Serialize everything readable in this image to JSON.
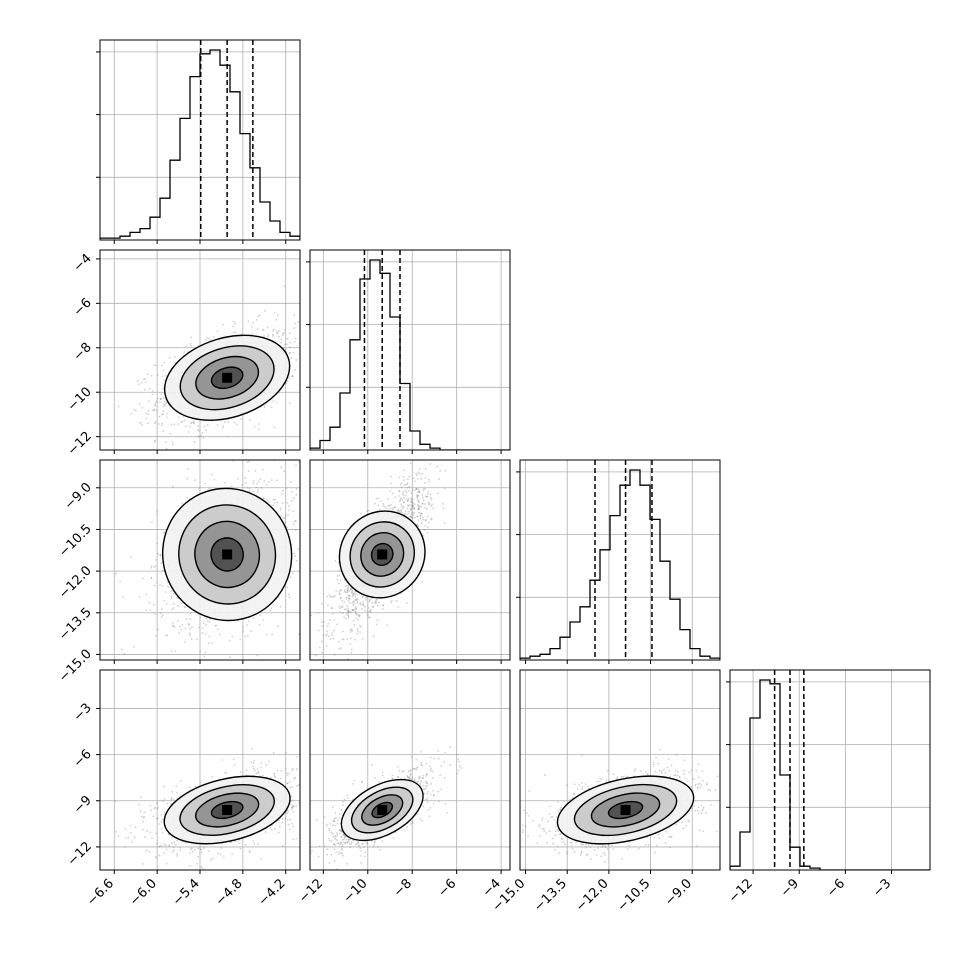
{
  "chart_data": {
    "type": "corner",
    "dimensions": 4,
    "axis_labels": [
      "",
      "",
      "",
      ""
    ],
    "grid": true,
    "colors": {
      "contour": "#000000",
      "density": "#000000",
      "points": "#7f7f7f",
      "grid": "#b0b0b0"
    },
    "quantile_style": "dashed",
    "params": [
      {
        "range": [
          -6.8,
          -4.0
        ],
        "ticks": [
          -6.6,
          -6.0,
          -5.4,
          -4.8,
          -4.2
        ],
        "tick_labels": [
          "−6.6",
          "−6.0",
          "−5.4",
          "−4.8",
          "−4.2"
        ],
        "quantiles": [
          -5.39,
          -5.02,
          -4.66
        ],
        "median": -5.02,
        "std": 0.36,
        "hist_heights": [
          0.01,
          0.01,
          0.02,
          0.04,
          0.06,
          0.12,
          0.22,
          0.42,
          0.64,
          0.86,
          0.98,
          1.0,
          0.92,
          0.78,
          0.56,
          0.38,
          0.2,
          0.1,
          0.04,
          0.02
        ]
      },
      {
        "range": [
          -12.6,
          -3.6
        ],
        "ticks": [
          -12,
          -10,
          -8,
          -6,
          -4
        ],
        "tick_labels": [
          "−12",
          "−10",
          "−8",
          "−6",
          "−4"
        ],
        "quantiles": [
          -10.15,
          -9.35,
          -8.55
        ],
        "median": -9.35,
        "std": 0.8,
        "hist_heights": [
          0.01,
          0.05,
          0.12,
          0.3,
          0.58,
          0.9,
          1.0,
          0.93,
          0.7,
          0.35,
          0.1,
          0.03,
          0.01,
          0,
          0,
          0,
          0,
          0,
          0,
          0
        ]
      },
      {
        "range": [
          -15.2,
          -8.0
        ],
        "ticks": [
          -15.0,
          -13.5,
          -12.0,
          -10.5,
          -9.0
        ],
        "tick_labels": [
          "−15.0",
          "−13.5",
          "−12.0",
          "−10.5",
          "−9.0"
        ],
        "quantiles": [
          -12.5,
          -11.4,
          -10.45
        ],
        "median": -11.4,
        "std": 1.0,
        "hist_heights": [
          0.01,
          0.02,
          0.03,
          0.06,
          0.12,
          0.2,
          0.28,
          0.42,
          0.58,
          0.76,
          0.92,
          1.0,
          0.92,
          0.74,
          0.52,
          0.32,
          0.16,
          0.06,
          0.02,
          0.01
        ]
      },
      {
        "range": [
          -13.5,
          -0.5
        ],
        "ticks": [
          -12,
          -9,
          -6,
          -3
        ],
        "tick_labels": [
          "−12",
          "−9",
          "−6",
          "−3"
        ],
        "quantiles": [
          -10.6,
          -9.6,
          -8.7
        ],
        "median": -9.6,
        "std": 0.9,
        "hist_heights": [
          0.02,
          0.2,
          0.8,
          1.0,
          0.98,
          0.5,
          0.12,
          0.02,
          0.01,
          0,
          0,
          0,
          0,
          0,
          0,
          0,
          0,
          0,
          0,
          0
        ]
      }
    ],
    "correlations": {
      "1-0": 0.45,
      "2-0": 0.3,
      "2-1": 0.8,
      "3-0": 0.45,
      "3-1": 0.7,
      "3-2": 0.45
    },
    "contour_levels_sigma": [
      0.5,
      1.0,
      1.5,
      2.0
    ]
  }
}
